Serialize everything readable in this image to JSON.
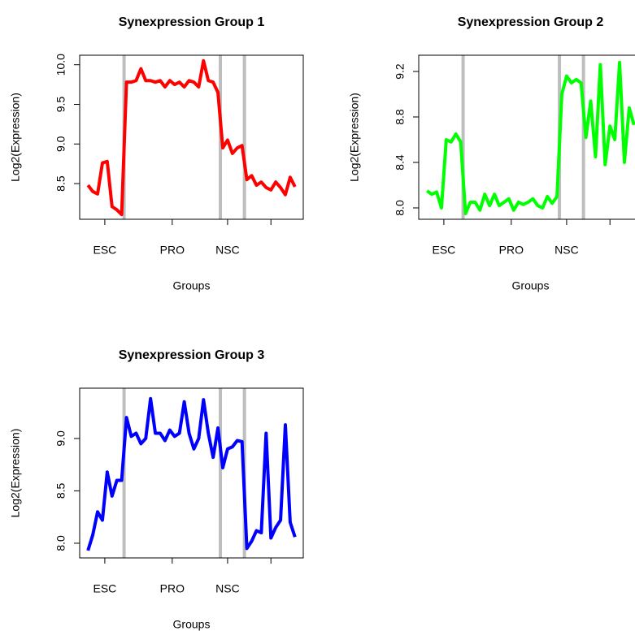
{
  "chart_data": [
    {
      "type": "line",
      "title": "Synexpression Group 1",
      "x_label": "Groups",
      "y_label": "Log2(Expression)",
      "color": "#ff0000",
      "x": [
        1,
        2,
        3,
        4,
        5,
        6,
        7,
        8,
        9,
        10,
        11,
        12,
        13,
        14,
        15,
        16,
        17,
        18,
        19,
        20,
        21,
        22,
        23,
        24,
        25,
        26,
        27,
        28,
        29,
        30,
        31,
        32,
        33,
        34,
        35,
        36,
        37,
        38,
        39,
        40,
        41,
        42,
        43,
        44
      ],
      "values": [
        8.48,
        8.4,
        8.37,
        8.76,
        8.78,
        8.21,
        8.17,
        8.11,
        9.78,
        9.78,
        9.8,
        9.95,
        9.8,
        9.8,
        9.78,
        9.8,
        9.72,
        9.8,
        9.75,
        9.78,
        9.72,
        9.8,
        9.78,
        9.72,
        10.05,
        9.8,
        9.78,
        9.65,
        8.95,
        9.05,
        8.88,
        8.95,
        8.98,
        8.55,
        8.6,
        8.48,
        8.52,
        8.45,
        8.42,
        8.52,
        8.45,
        8.36,
        8.58,
        8.46
      ],
      "xlim": [
        -0.72,
        45.72
      ],
      "ylim": [
        8.05,
        10.12
      ],
      "xticks": [
        {
          "value": 4.5,
          "label": "ESC"
        },
        {
          "value": 18.5,
          "label": "PRO"
        },
        {
          "value": 30,
          "label": "NSC"
        },
        {
          "value": 39,
          "label": null
        }
      ],
      "yticks": [
        {
          "value": 8.5,
          "label": "8.5"
        },
        {
          "value": 9,
          "label": "9.0"
        },
        {
          "value": 9.5,
          "label": "9.5"
        },
        {
          "value": 10,
          "label": "10.0"
        }
      ],
      "vlines": [
        8.5,
        28.5,
        33.5
      ],
      "vline_color": "#bebebe"
    },
    {
      "type": "line",
      "title": "Synexpression Group 2",
      "x_label": "Groups",
      "y_label": "Log2(Expression)",
      "color": "#00ff00",
      "x": [
        1,
        2,
        3,
        4,
        5,
        6,
        7,
        8,
        9,
        10,
        11,
        12,
        13,
        14,
        15,
        16,
        17,
        18,
        19,
        20,
        21,
        22,
        23,
        24,
        25,
        26,
        27,
        28,
        29,
        30,
        31,
        32,
        33,
        34,
        35,
        36,
        37,
        38,
        39,
        40,
        41,
        42,
        43,
        44
      ],
      "values": [
        8.15,
        8.12,
        8.14,
        8.0,
        8.6,
        8.58,
        8.65,
        8.58,
        7.95,
        8.05,
        8.05,
        7.98,
        8.12,
        8.02,
        8.12,
        8.02,
        8.05,
        8.08,
        7.98,
        8.05,
        8.03,
        8.05,
        8.08,
        8.02,
        8.0,
        8.1,
        8.04,
        8.1,
        9.0,
        9.16,
        9.1,
        9.13,
        9.1,
        8.62,
        8.94,
        8.45,
        9.26,
        8.38,
        8.72,
        8.6,
        9.28,
        8.4,
        8.88,
        8.73
      ],
      "xlim": [
        -0.72,
        45.72
      ],
      "ylim": [
        7.9,
        9.343
      ],
      "xticks": [
        {
          "value": 4.5,
          "label": "ESC"
        },
        {
          "value": 18.5,
          "label": "PRO"
        },
        {
          "value": 30,
          "label": "NSC"
        },
        {
          "value": 39,
          "label": null
        }
      ],
      "yticks": [
        {
          "value": 8.0,
          "label": "8.0"
        },
        {
          "value": 8.4,
          "label": "8.4"
        },
        {
          "value": 8.8,
          "label": "8.8"
        },
        {
          "value": 9.2,
          "label": "9.2"
        }
      ],
      "vlines": [
        8.5,
        28.5,
        33.5
      ],
      "vline_color": "#bebebe"
    },
    {
      "type": "line",
      "title": "Synexpression Group 3",
      "x_label": "Groups",
      "y_label": "Log2(Expression)",
      "color": "#0000ff",
      "x": [
        1,
        2,
        3,
        4,
        5,
        6,
        7,
        8,
        9,
        10,
        11,
        12,
        13,
        14,
        15,
        16,
        17,
        18,
        19,
        20,
        21,
        22,
        23,
        24,
        25,
        26,
        27,
        28,
        29,
        30,
        31,
        32,
        33,
        34,
        35,
        36,
        37,
        38,
        39,
        40,
        41,
        42,
        43,
        44
      ],
      "values": [
        7.93,
        8.08,
        8.3,
        8.22,
        8.68,
        8.45,
        8.6,
        8.6,
        9.2,
        9.02,
        9.05,
        8.95,
        9.0,
        9.38,
        9.05,
        9.05,
        8.98,
        9.08,
        9.02,
        9.05,
        9.35,
        9.05,
        8.9,
        9.0,
        9.37,
        9.05,
        8.82,
        9.1,
        8.72,
        8.9,
        8.92,
        8.98,
        8.97,
        7.95,
        8.02,
        8.12,
        8.1,
        9.05,
        8.05,
        8.15,
        8.22,
        9.13,
        8.2,
        8.06
      ],
      "xlim": [
        -0.72,
        45.72
      ],
      "ylim": [
        7.86,
        9.48
      ],
      "xticks": [
        {
          "value": 4.5,
          "label": "ESC"
        },
        {
          "value": 18.5,
          "label": "PRO"
        },
        {
          "value": 30,
          "label": "NSC"
        },
        {
          "value": 39,
          "label": null
        }
      ],
      "yticks": [
        {
          "value": 8.0,
          "label": "8.0"
        },
        {
          "value": 8.5,
          "label": "8.5"
        },
        {
          "value": 9.0,
          "label": "9.0"
        }
      ],
      "vlines": [
        8.5,
        28.5,
        33.5
      ],
      "vline_color": "#bebebe"
    }
  ]
}
